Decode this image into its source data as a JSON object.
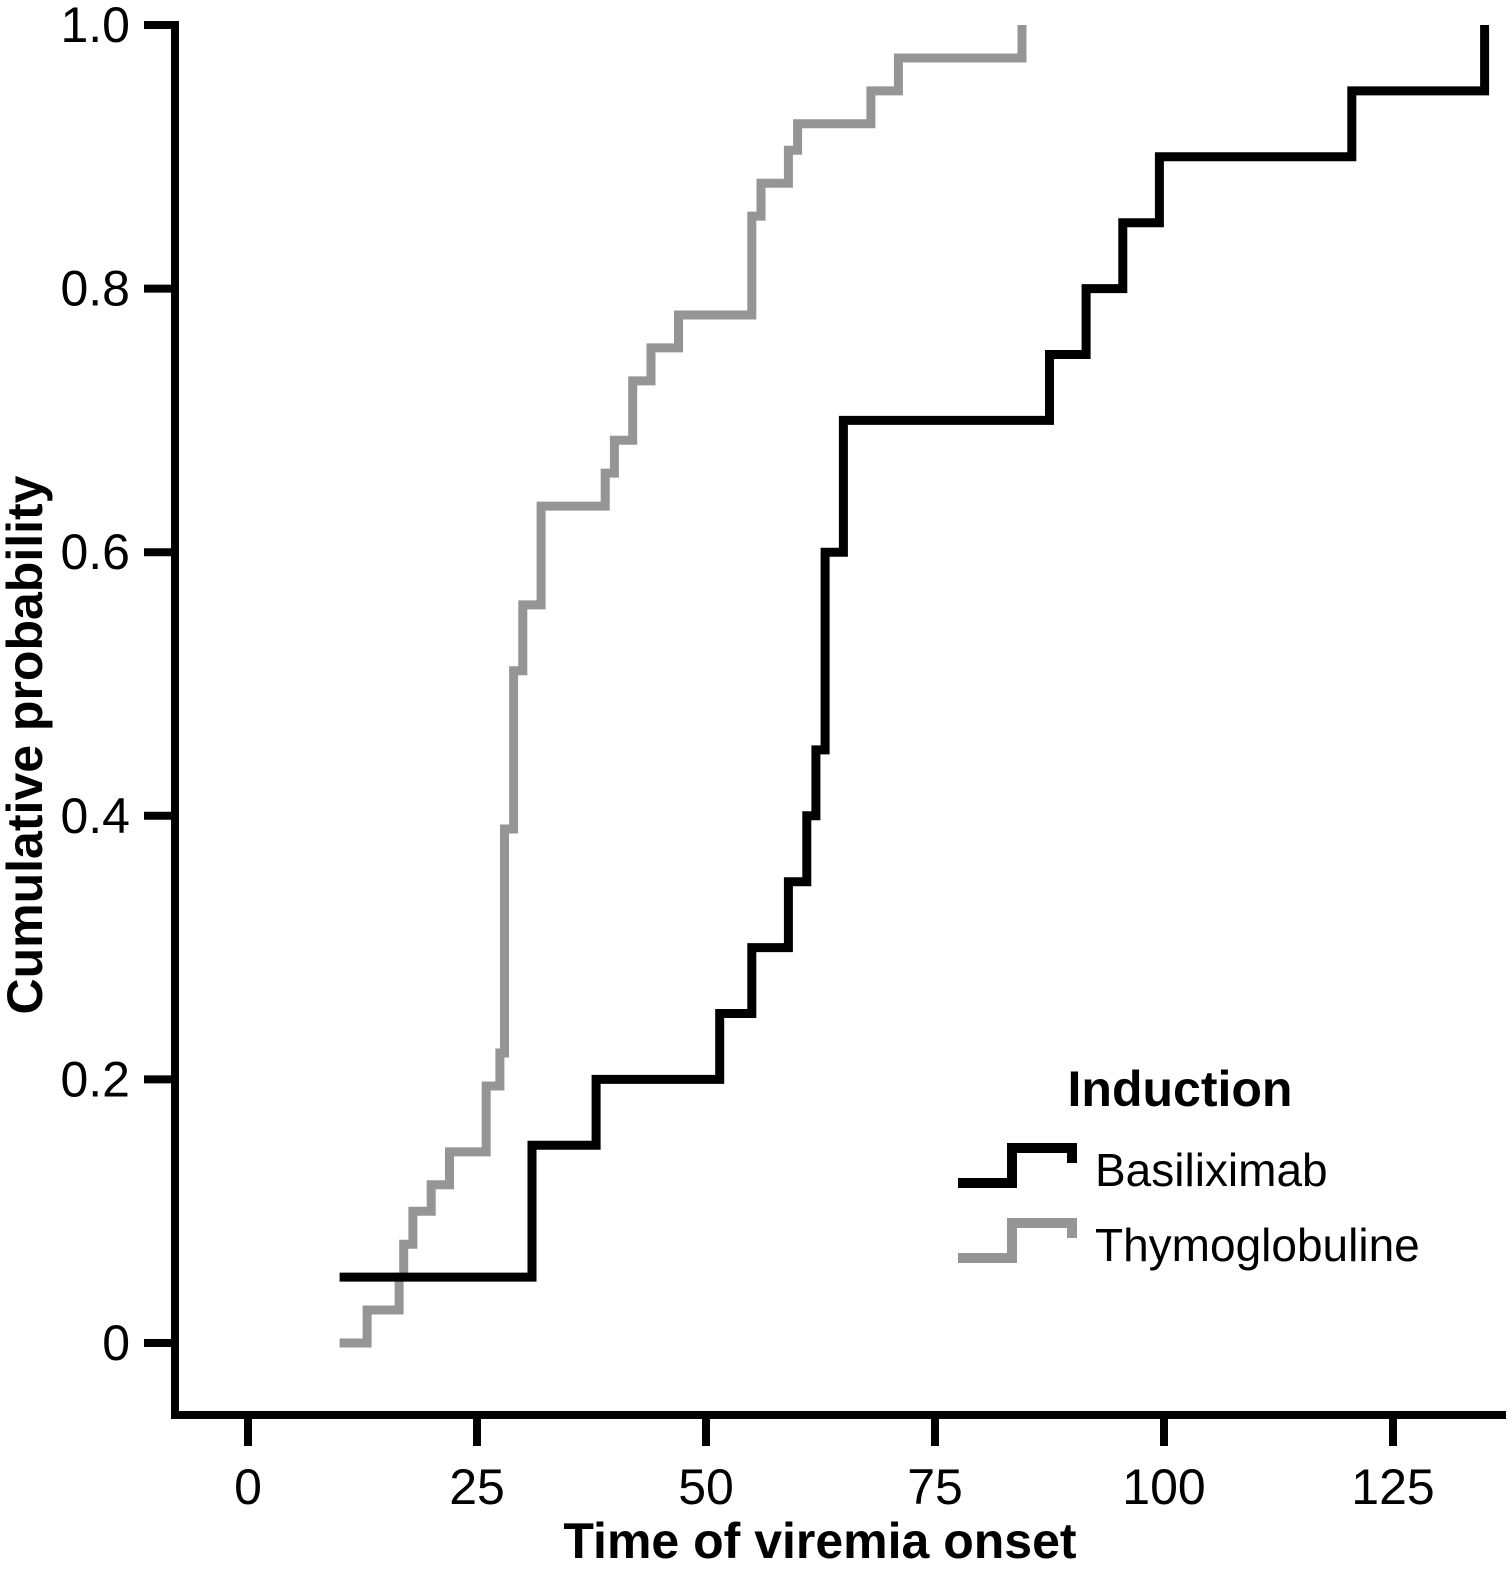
{
  "figure": {
    "y_axis_label": "Cumulative probability",
    "x_axis_label": "Time of viremia onset",
    "legend": {
      "title": "Induction",
      "items": [
        {
          "label": "Basiliximab",
          "color": "#000000"
        },
        {
          "label": "Thymoglobuline",
          "color": "#959595"
        }
      ]
    }
  },
  "chart_data": {
    "type": "line",
    "subtype": "kaplan-meier-step-cumulative-incidence",
    "title": "",
    "xlabel": "Time of viremia onset",
    "ylabel": "Cumulative probability",
    "xlim": [
      -8,
      138
    ],
    "ylim": [
      -0.06,
      1.0
    ],
    "x_tick_values": [
      0,
      25,
      50,
      75,
      100,
      125
    ],
    "x_tick_labels": [
      "0",
      "25",
      "50",
      "75",
      "100",
      "125"
    ],
    "y_tick_values": [
      0,
      0.2,
      0.4,
      0.6,
      0.8,
      1.0
    ],
    "y_tick_labels": [
      "0",
      "0.2",
      "0.4",
      "0.6",
      "0.8",
      "1.0"
    ],
    "grid": false,
    "legend_title": "Induction",
    "legend_position": "lower right",
    "series": [
      {
        "name": "Thymoglobuline",
        "color": "#959595",
        "step_points": [
          [
            10,
            0
          ],
          [
            13,
            0.025
          ],
          [
            16.5,
            0.05
          ],
          [
            17,
            0.075
          ],
          [
            18,
            0.1
          ],
          [
            20,
            0.12
          ],
          [
            22,
            0.145
          ],
          [
            26,
            0.195
          ],
          [
            27.5,
            0.22
          ],
          [
            28,
            0.39
          ],
          [
            29,
            0.51
          ],
          [
            30,
            0.56
          ],
          [
            32,
            0.635
          ],
          [
            39,
            0.66
          ],
          [
            40,
            0.685
          ],
          [
            42,
            0.73
          ],
          [
            44,
            0.755
          ],
          [
            47,
            0.78
          ],
          [
            55,
            0.855
          ],
          [
            56,
            0.88
          ],
          [
            59,
            0.905
          ],
          [
            60,
            0.925
          ],
          [
            68,
            0.95
          ],
          [
            71,
            0.975
          ],
          [
            84.5,
            1.0
          ]
        ]
      },
      {
        "name": "Basiliximab",
        "color": "#000000",
        "step_points": [
          [
            10,
            0.05
          ],
          [
            31,
            0.15
          ],
          [
            38,
            0.2
          ],
          [
            51.5,
            0.25
          ],
          [
            55,
            0.3
          ],
          [
            59,
            0.35
          ],
          [
            61,
            0.4
          ],
          [
            62,
            0.45
          ],
          [
            63,
            0.6
          ],
          [
            65,
            0.7
          ],
          [
            87.5,
            0.75
          ],
          [
            91.5,
            0.8
          ],
          [
            95.5,
            0.85
          ],
          [
            99.5,
            0.9
          ],
          [
            120.5,
            0.95
          ],
          [
            135,
            1.0
          ]
        ]
      }
    ]
  }
}
